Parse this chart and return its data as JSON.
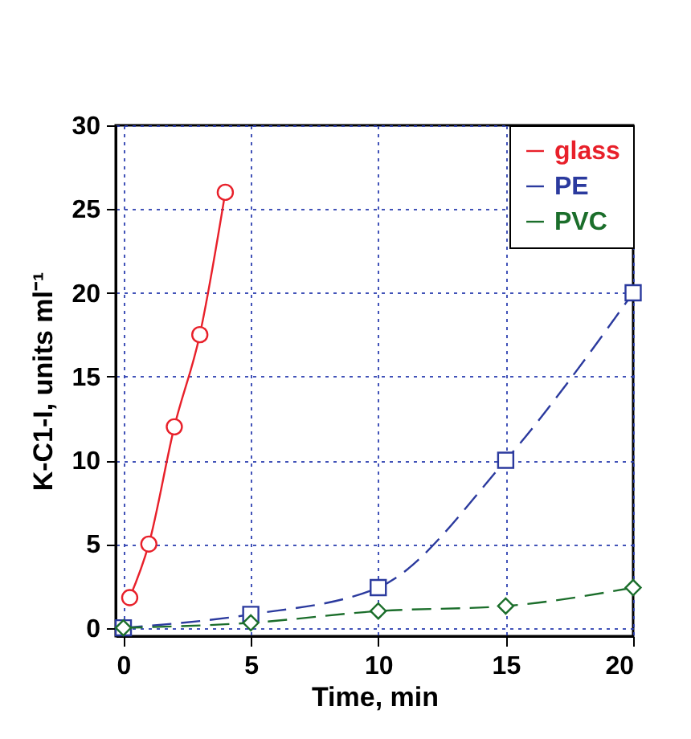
{
  "chart_data": {
    "type": "line",
    "xlabel": "Time, min",
    "ylabel": "K-C1-I, units ml⁻¹",
    "xlim": [
      -0.3,
      20
    ],
    "xticks": [
      0,
      5,
      10,
      15,
      20
    ],
    "ylim": [
      -0.5,
      30
    ],
    "yticks": [
      0,
      5,
      10,
      15,
      20,
      25,
      30
    ],
    "grid": true,
    "legend": "top right",
    "series": [
      {
        "name": "glass",
        "color": "#e8202a",
        "marker": "circle",
        "line_style": "solid",
        "x": [
          0.25,
          1,
          2,
          3,
          4
        ],
        "values": [
          1.8,
          5,
          12,
          17.5,
          26
        ]
      },
      {
        "name": "PE",
        "color": "#2b3a9e",
        "marker": "square",
        "line_style": "dashed",
        "x": [
          0,
          5,
          10,
          15,
          20
        ],
        "values": [
          0,
          0.8,
          2.4,
          10,
          20
        ]
      },
      {
        "name": "PVC",
        "color": "#1b6e2b",
        "marker": "diamond",
        "line_style": "dashed",
        "x": [
          0,
          5,
          10,
          15,
          20
        ],
        "values": [
          0,
          0.3,
          1,
          1.3,
          2.4
        ]
      }
    ]
  }
}
